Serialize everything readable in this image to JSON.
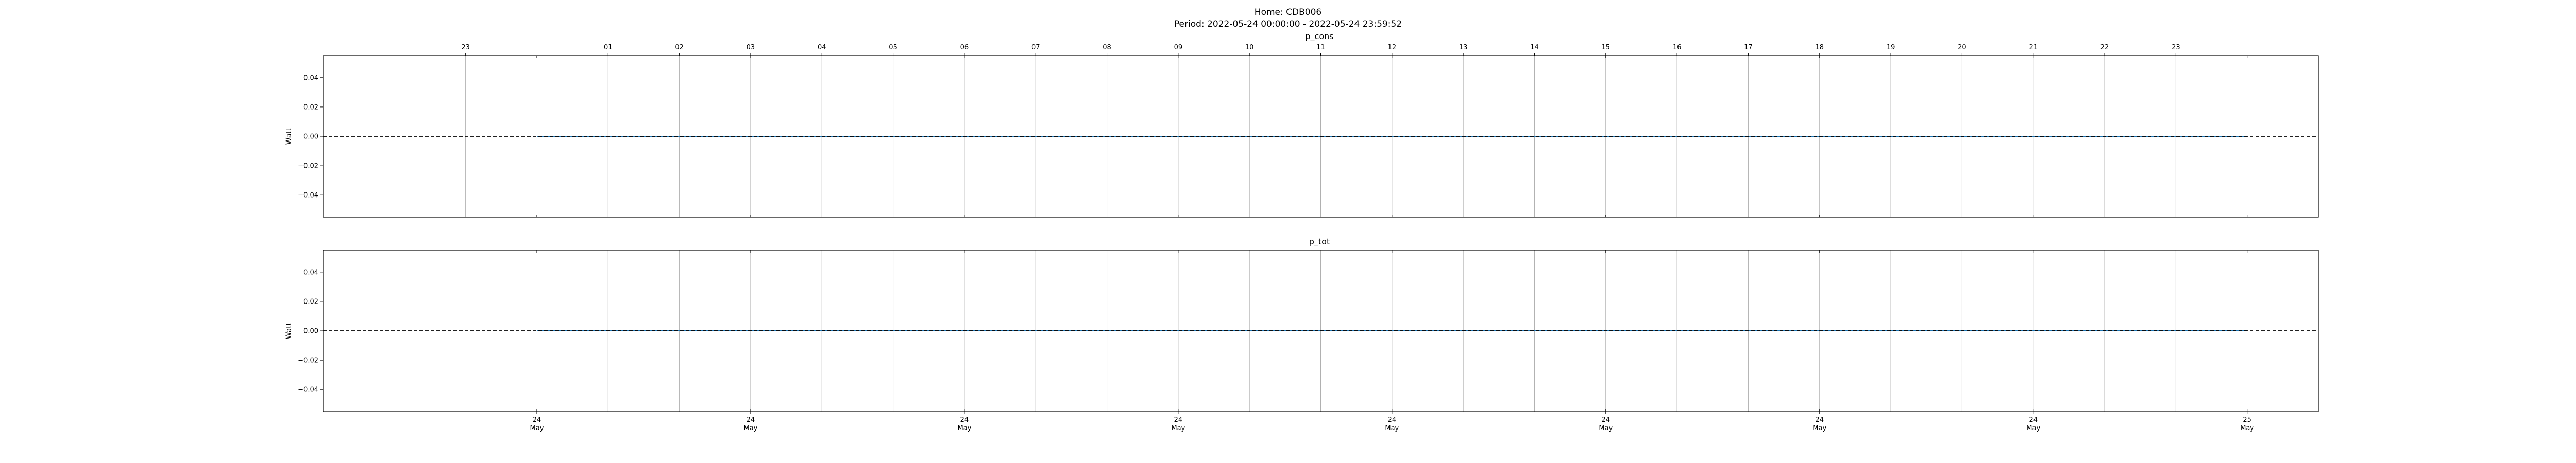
{
  "figure": {
    "title_line1": "Home: CDB006",
    "title_line2": "Period: 2022-05-24 00:00:00 - 2022-05-24 23:59:52"
  },
  "colors": {
    "series_line": "#1f77b4",
    "zero_line": "#000000",
    "hour_grid": "#b0b0b0",
    "axes_frame": "#000000"
  },
  "chart_data": [
    {
      "type": "line",
      "title": "p_cons",
      "ylabel": "Watt",
      "ylim": [
        -0.055,
        0.055
      ],
      "yticks": [
        0.04,
        0.02,
        0.0,
        -0.02,
        -0.04
      ],
      "ytick_labels": [
        "0.04",
        "0.02",
        "0.00",
        "−0.02",
        "−0.04"
      ],
      "xlim": [
        -3.0,
        25.0
      ],
      "hour_ticks": [
        -1,
        1,
        2,
        3,
        4,
        5,
        6,
        7,
        8,
        9,
        10,
        11,
        12,
        13,
        14,
        15,
        16,
        17,
        18,
        19,
        20,
        21,
        22,
        23
      ],
      "hour_labels": [
        "23",
        "01",
        "02",
        "03",
        "04",
        "05",
        "06",
        "07",
        "08",
        "09",
        "10",
        "11",
        "12",
        "13",
        "14",
        "15",
        "16",
        "17",
        "18",
        "19",
        "20",
        "21",
        "22",
        "23"
      ],
      "series": [
        {
          "x": [
            0,
            24
          ],
          "y": [
            0,
            0
          ],
          "style": "solid"
        }
      ],
      "reference_lines": [
        {
          "y": 0,
          "style": "dashed"
        }
      ],
      "grid": "vertical hour lines"
    },
    {
      "type": "line",
      "title": "p_tot",
      "ylabel": "Watt",
      "ylim": [
        -0.055,
        0.055
      ],
      "yticks": [
        0.04,
        0.02,
        0.0,
        -0.02,
        -0.04
      ],
      "ytick_labels": [
        "0.04",
        "0.02",
        "0.00",
        "−0.02",
        "−0.04"
      ],
      "xlim": [
        -3.0,
        25.0
      ],
      "hour_ticks": [
        1,
        2,
        3,
        4,
        5,
        6,
        7,
        8,
        9,
        10,
        11,
        12,
        13,
        14,
        15,
        16,
        17,
        18,
        19,
        20,
        21,
        22,
        23
      ],
      "series": [
        {
          "x": [
            0,
            24
          ],
          "y": [
            0,
            0
          ],
          "style": "solid"
        }
      ],
      "reference_lines": [
        {
          "y": 0,
          "style": "dashed"
        }
      ],
      "grid": "vertical hour lines",
      "xticks": [
        0,
        3,
        6,
        9,
        12,
        15,
        18,
        21,
        24
      ],
      "xtick_labels": [
        [
          "24",
          "May"
        ],
        [
          "24",
          "May"
        ],
        [
          "24",
          "May"
        ],
        [
          "24",
          "May"
        ],
        [
          "24",
          "May"
        ],
        [
          "24",
          "May"
        ],
        [
          "24",
          "May"
        ],
        [
          "24",
          "May"
        ],
        [
          "25",
          "May"
        ]
      ]
    }
  ]
}
